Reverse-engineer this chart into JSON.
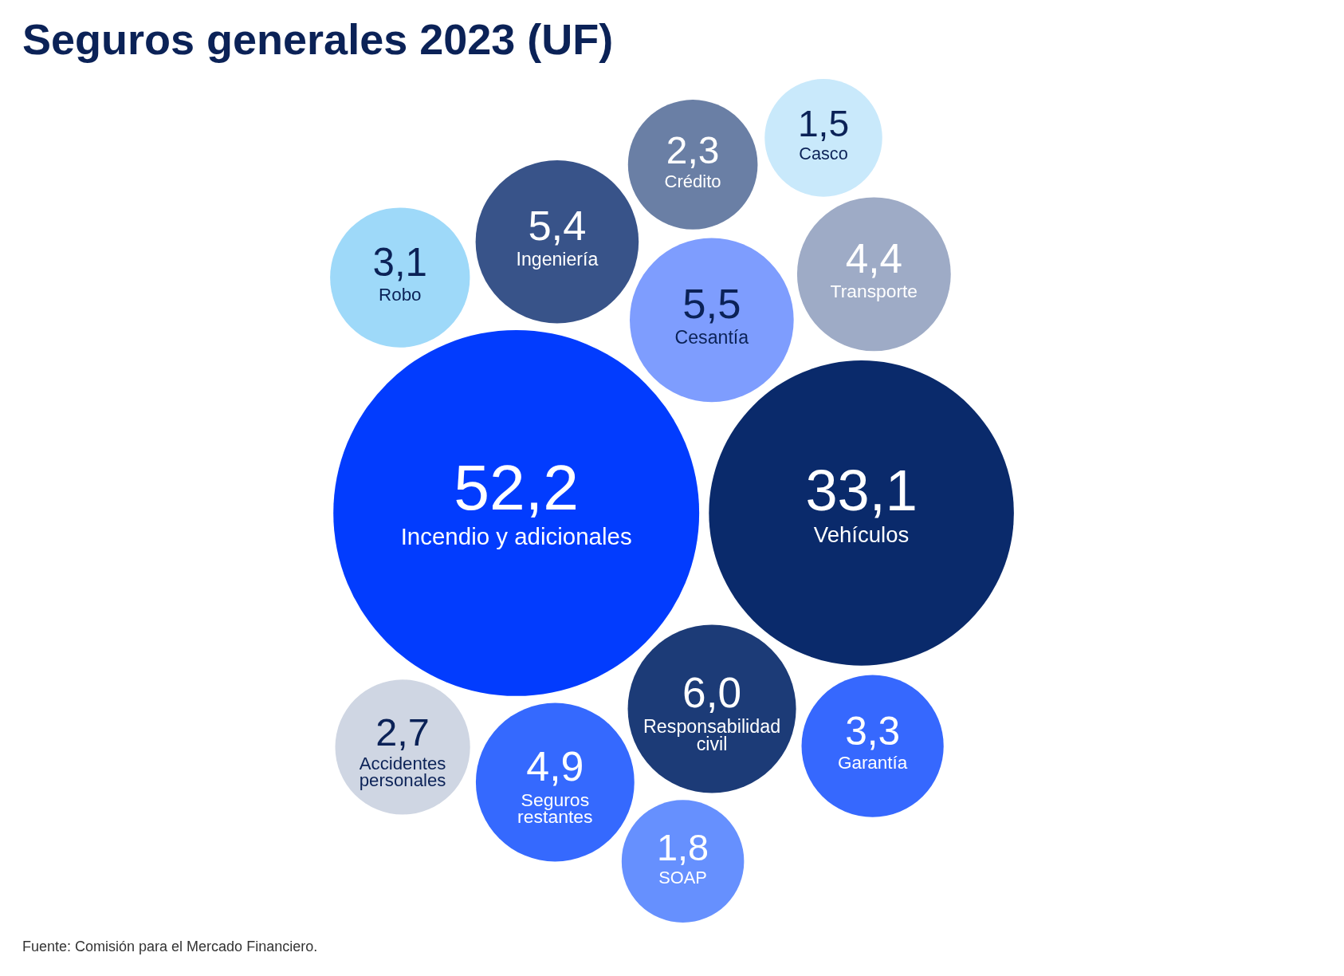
{
  "chart_data": {
    "type": "other",
    "title": "Seguros generales 2023 (UF)",
    "categories": [
      "Incendio y adicionales",
      "Vehículos",
      "Responsabilidad civil",
      "Cesantía",
      "Ingeniería",
      "Seguros restantes",
      "Transporte",
      "Garantía",
      "Robo",
      "Accidentes personales",
      "Crédito",
      "SOAP",
      "Casco"
    ],
    "values": [
      52.2,
      33.1,
      6.0,
      5.5,
      5.4,
      4.9,
      4.4,
      3.3,
      3.1,
      2.7,
      2.3,
      1.8,
      1.5
    ],
    "value_labels": [
      "52,2",
      "33,1",
      "6,0",
      "5,5",
      "5,4",
      "4,9",
      "4,4",
      "3,3",
      "3,1",
      "2,7",
      "2,3",
      "1,8",
      "1,5"
    ],
    "colors": [
      "#023cfe",
      "#0a2a6b",
      "#1c3b77",
      "#7e9dfe",
      "#385389",
      "#3569fe",
      "#9eabc6",
      "#3668fe",
      "#9ed9f9",
      "#cfd6e3",
      "#6a7fa5",
      "#6690fe",
      "#c9e9fb"
    ],
    "annotations": [
      "Fuente: Comisión para el Mercado Financiero."
    ]
  }
}
